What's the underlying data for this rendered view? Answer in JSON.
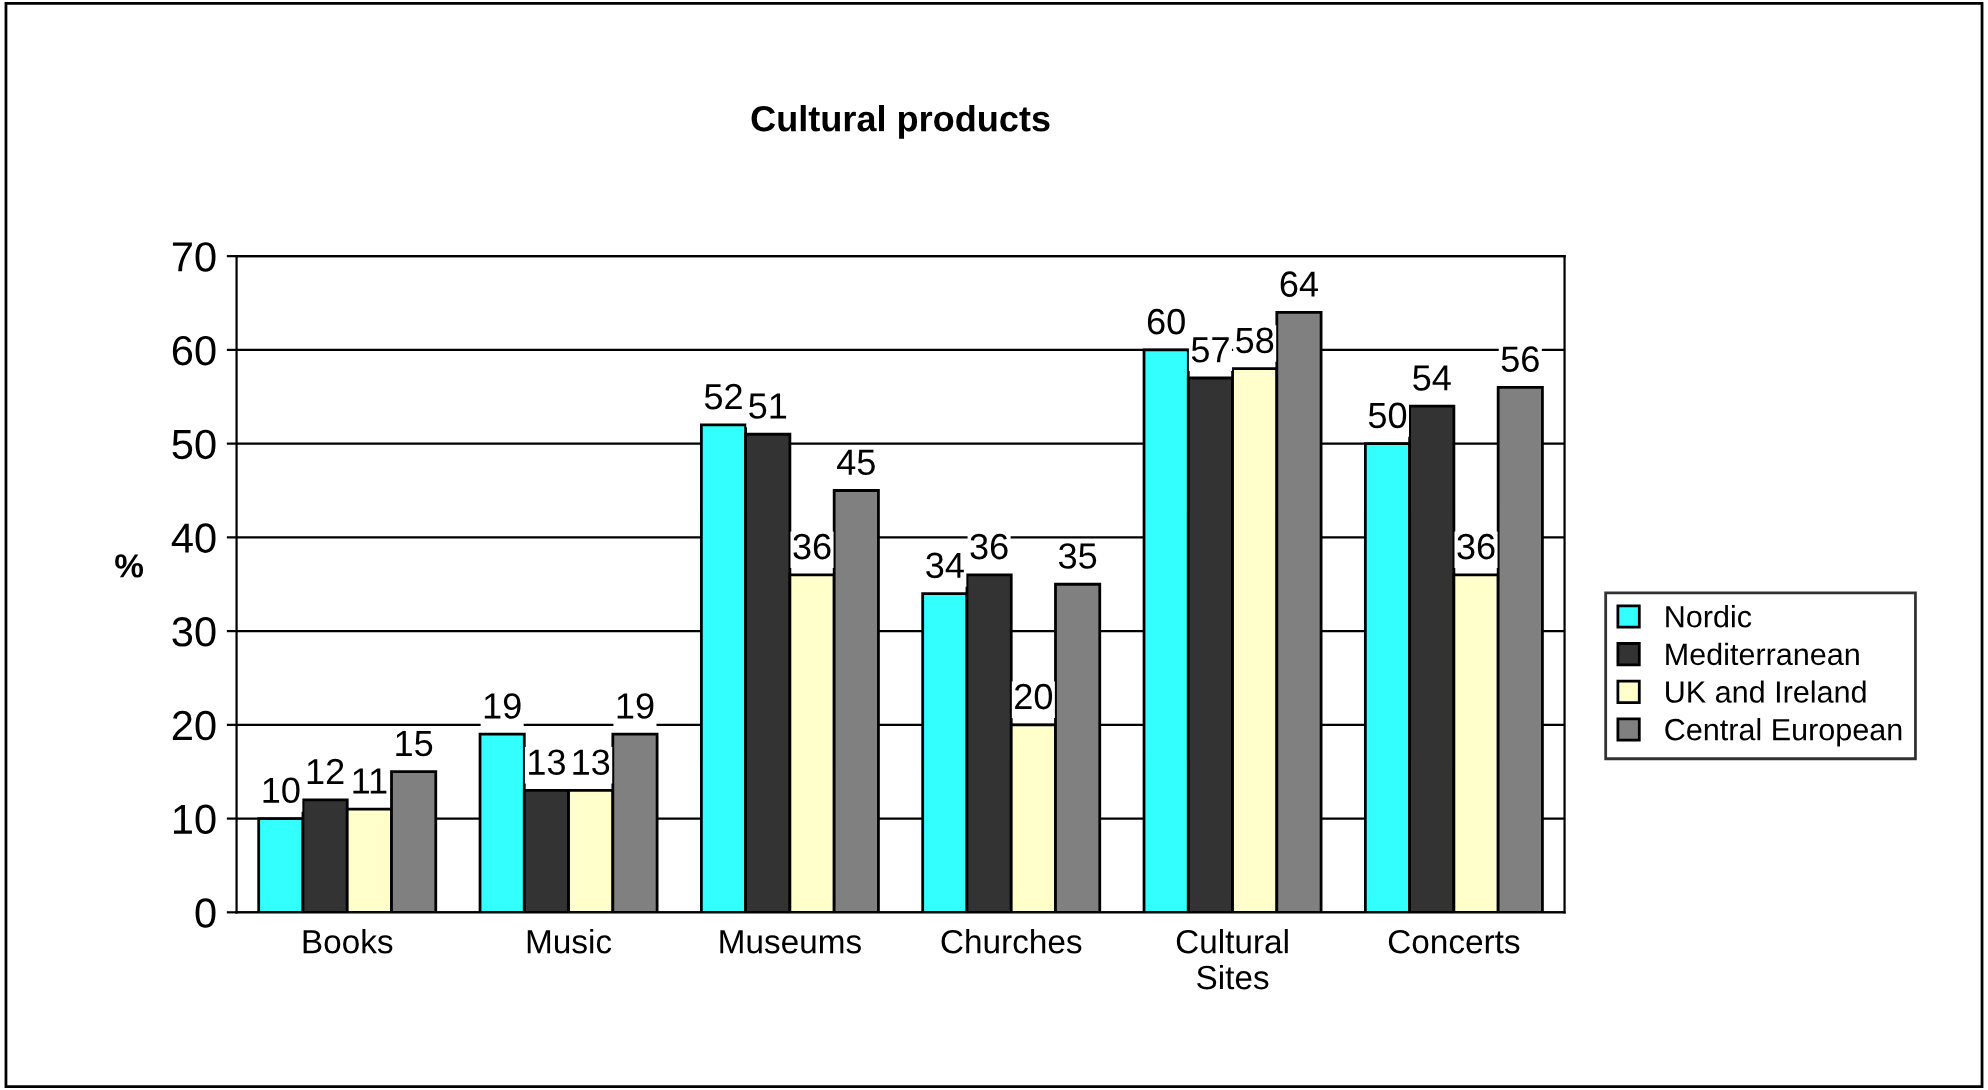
{
  "chart_data": {
    "type": "bar",
    "title": "Cultural products",
    "ylabel": "%",
    "categories": [
      "Books",
      "Music",
      "Museums",
      "Churches",
      "Cultural\nSites",
      "Concerts"
    ],
    "series": [
      {
        "name": "Nordic",
        "color": "#33ffff",
        "values": [
          10,
          19,
          52,
          34,
          60,
          50
        ]
      },
      {
        "name": "Mediterranean",
        "color": "#333333",
        "values": [
          12,
          13,
          51,
          36,
          57,
          54
        ]
      },
      {
        "name": "UK and Ireland",
        "color": "#ffffcc",
        "values": [
          11,
          13,
          36,
          20,
          58,
          36
        ]
      },
      {
        "name": "Central European",
        "color": "#808080",
        "values": [
          15,
          19,
          45,
          35,
          64,
          56
        ]
      }
    ],
    "ylim": [
      0,
      70
    ],
    "yticks": [
      0,
      10,
      20,
      30,
      40,
      50,
      60,
      70
    ],
    "grid": "y",
    "legend": "right",
    "data_labels": true
  }
}
